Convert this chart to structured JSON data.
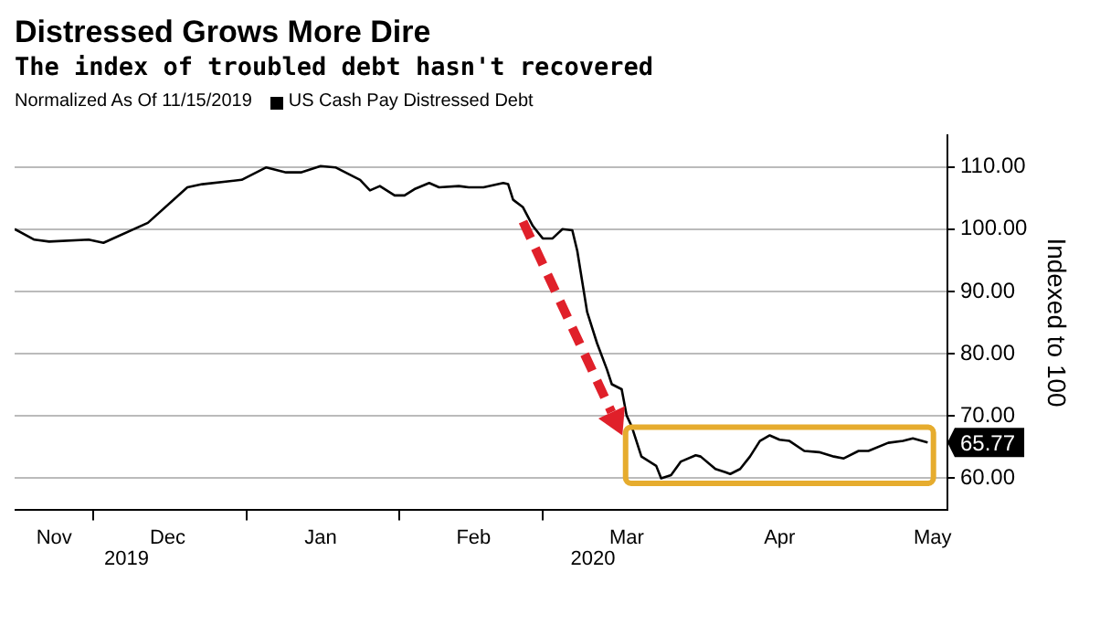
{
  "chart_data": {
    "type": "line",
    "title": "Distressed Grows More Dire",
    "subtitle": "The index of troubled debt hasn't recovered",
    "legend_title": "Normalized As Of 11/15/2019",
    "legend": "top left",
    "ylabel": "Indexed to 100",
    "grid": "y",
    "marker": "none",
    "line_style": "solid",
    "annotations": [
      "2019",
      "2020"
    ],
    "x": [
      "2019-11-15",
      "2019-11-19",
      "2019-11-22",
      "2019-11-30",
      "2019-12-03",
      "2019-12-12",
      "2019-12-20",
      "2019-12-23",
      "2019-12-31",
      "2020-01-05",
      "2020-01-09",
      "2020-01-12",
      "2020-01-16",
      "2020-01-19",
      "2020-01-24",
      "2020-01-26",
      "2020-01-28",
      "2020-01-31",
      "2020-02-02",
      "2020-02-04",
      "2020-02-07",
      "2020-02-09",
      "2020-02-13",
      "2020-02-15",
      "2020-02-18",
      "2020-02-22",
      "2020-02-23",
      "2020-02-24",
      "2020-02-26",
      "2020-02-28",
      "2020-03-01",
      "2020-03-03",
      "2020-03-05",
      "2020-03-07",
      "2020-03-08",
      "2020-03-10",
      "2020-03-12",
      "2020-03-14",
      "2020-03-15",
      "2020-03-17",
      "2020-03-18",
      "2020-03-19",
      "2020-03-21",
      "2020-03-24",
      "2020-03-25",
      "2020-03-27",
      "2020-03-29",
      "2020-04-01",
      "2020-04-02",
      "2020-04-05",
      "2020-04-07",
      "2020-04-08",
      "2020-04-10",
      "2020-04-12",
      "2020-04-14",
      "2020-04-16",
      "2020-04-18",
      "2020-04-20",
      "2020-04-23",
      "2020-04-26",
      "2020-04-29",
      "2020-05-01",
      "2020-05-04",
      "2020-05-06",
      "2020-05-10",
      "2020-05-13",
      "2020-05-15",
      "2020-05-18"
    ],
    "series": [
      {
        "name": "US Cash Pay Distressed Debt",
        "color": "#000000",
        "values": [
          100,
          98.3,
          98.0,
          98.3,
          97.8,
          101.0,
          106.7,
          107.2,
          107.9,
          109.9,
          109.1,
          109.1,
          110.1,
          109.9,
          107.9,
          106.2,
          106.9,
          105.4,
          105.4,
          106.4,
          107.4,
          106.7,
          106.9,
          106.7,
          106.7,
          107.4,
          107.2,
          104.7,
          103.5,
          100.5,
          98.5,
          98.5,
          100.0,
          99.8,
          96.5,
          86.7,
          81.7,
          77.5,
          75.1,
          74.3,
          70.1,
          68.4,
          63.5,
          62.0,
          60.0,
          60.5,
          62.7,
          63.7,
          63.5,
          61.5,
          61.0,
          60.7,
          61.5,
          63.5,
          66.0,
          66.9,
          66.2,
          66.0,
          64.4,
          64.2,
          63.5,
          63.2,
          64.4,
          64.4,
          65.7,
          66.0,
          66.4,
          65.77
        ],
        "value_labels": [
          null,
          null,
          null,
          null,
          null,
          null,
          null,
          null,
          null,
          null,
          null,
          null,
          null,
          null,
          null,
          null,
          null,
          null,
          null,
          null,
          null,
          null,
          null,
          null,
          null,
          null,
          null,
          null,
          null,
          null,
          null,
          null,
          null,
          null,
          null,
          null,
          null,
          null,
          null,
          null,
          null,
          null,
          null,
          null,
          null,
          null,
          null,
          null,
          null,
          null,
          null,
          null,
          null,
          null,
          null,
          null,
          null,
          null,
          null,
          null,
          null,
          null,
          null,
          null,
          null,
          null,
          null,
          "65.77"
        ]
      }
    ],
    "xlim": [
      "2019-11-15",
      "2020-05-22"
    ],
    "xticks": [
      {
        "value": "2019-11-23",
        "label": "Nov"
      },
      {
        "value": "2019-12-01",
        "label": null
      },
      {
        "value": "2019-12-16",
        "label": "Dec"
      },
      {
        "value": "2020-01-01",
        "label": null
      },
      {
        "value": "2020-01-16",
        "label": "Jan"
      },
      {
        "value": "2020-02-01",
        "label": null
      },
      {
        "value": "2020-02-16",
        "label": "Feb"
      },
      {
        "value": "2020-03-01",
        "label": null
      },
      {
        "value": "2020-03-18",
        "label": "Mar"
      },
      {
        "value": "2020-04-18",
        "label": "Apr"
      },
      {
        "value": "2020-05-19",
        "label": "May"
      }
    ],
    "ylim": [
      55,
      115
    ],
    "yticks": [
      {
        "value": 60,
        "label": "60.00"
      },
      {
        "value": 70,
        "label": "70.00"
      },
      {
        "value": 80,
        "label": "80.00"
      },
      {
        "value": 90,
        "label": "90.00"
      },
      {
        "value": 100,
        "label": "100.00"
      },
      {
        "value": 110,
        "label": "110.00"
      }
    ]
  }
}
